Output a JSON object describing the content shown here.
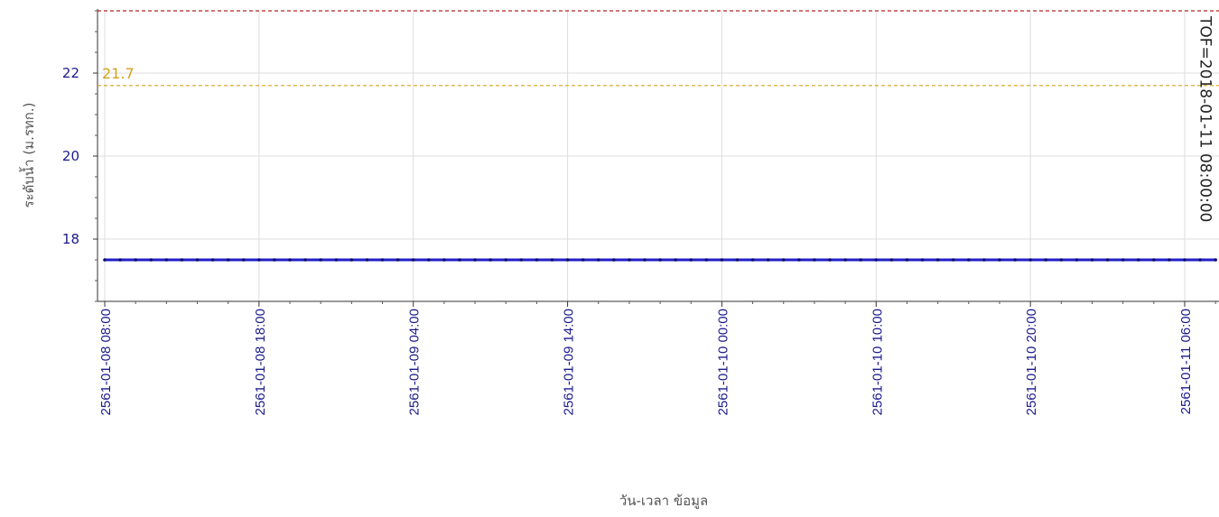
{
  "chart_data": {
    "type": "line",
    "xlabel": "วัน-เวลา ข้อมูล",
    "ylabel": "ระดับน้ำ (ม.รทก.)",
    "x_ticks": [
      "2561-01-08 08:00",
      "2561-01-08 18:00",
      "2561-01-09 04:00",
      "2561-01-09 14:00",
      "2561-01-10 00:00",
      "2561-01-10 10:00",
      "2561-01-10 20:00",
      "2561-01-11 06:00"
    ],
    "y_ticks": [
      18,
      20,
      22
    ],
    "ylim": [
      16.5,
      23.5
    ],
    "xlim_hours": [
      -0.1,
      72.5
    ],
    "grid": true,
    "series": [
      {
        "color": "#1f1fc8",
        "x_hours": [
          0,
          72
        ],
        "values": [
          17.5,
          17.5
        ]
      }
    ],
    "reference_lines": [
      {
        "axis": "y",
        "value": 23.5,
        "color": "#b22222",
        "style": "dashed"
      },
      {
        "axis": "y",
        "value": 21.7,
        "label": "21.7",
        "color": "#d4a21a",
        "style": "dashed"
      },
      {
        "axis": "x",
        "value_hours": 72.5,
        "label": "TOF=2018-01-11 08:00:00",
        "color": "#222222",
        "style": "dashed"
      }
    ]
  }
}
